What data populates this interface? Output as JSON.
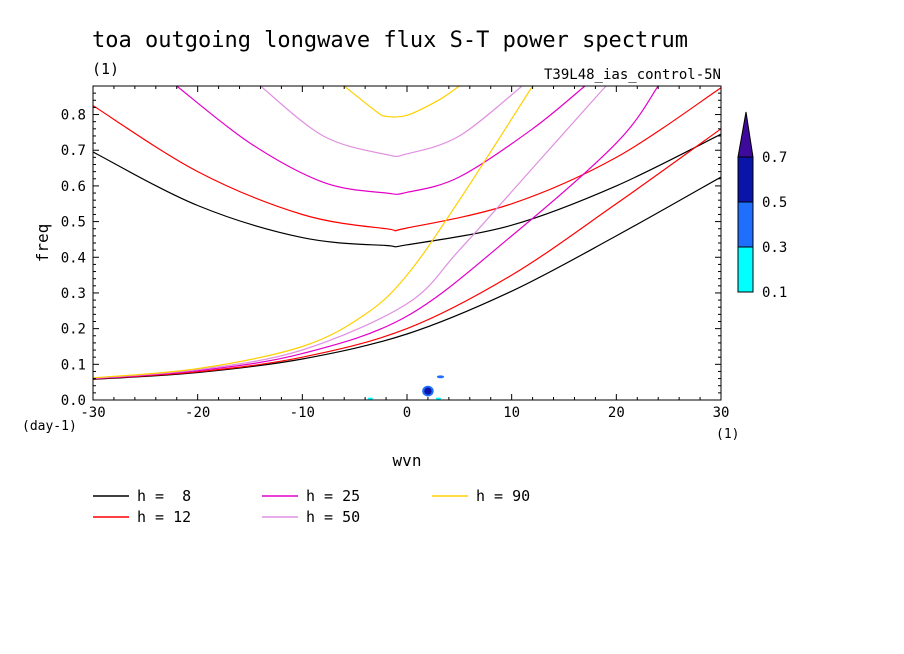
{
  "chart_data": {
    "type": "line",
    "title": "toa outgoing longwave flux S-T power spectrum",
    "subtitle_left": "(1)",
    "subtitle_right": "T39L48_ias_control-5N",
    "xlabel": "wvn",
    "ylabel": "freq",
    "x_unit": "(1)",
    "y_unit": "(day-1)",
    "xlim": [
      -30,
      30
    ],
    "ylim": [
      0,
      0.88
    ],
    "xticks": [
      -30,
      -20,
      -10,
      0,
      10,
      20,
      30
    ],
    "xtick_labels": [
      "-30",
      "-20",
      "-10",
      "0",
      "10",
      "20",
      "30"
    ],
    "yticks": [
      0.0,
      0.1,
      0.2,
      0.3,
      0.4,
      0.5,
      0.6,
      0.7,
      0.8
    ],
    "ytick_labels": [
      "0.0",
      "0.1",
      "0.2",
      "0.3",
      "0.4",
      "0.5",
      "0.6",
      "0.7",
      "0.8"
    ],
    "colorbar": {
      "levels": [
        "0.1",
        "0.3",
        "0.5",
        "0.7"
      ],
      "colors": [
        "#00ffff",
        "#1f6fff",
        "#0a14a8",
        "#3d0a9c"
      ]
    },
    "legend": [
      {
        "label": "h =  8",
        "color": "#000000"
      },
      {
        "label": "h = 12",
        "color": "#ff0000"
      },
      {
        "label": "h = 25",
        "color": "#e400c8"
      },
      {
        "label": "h = 50",
        "color": "#e090e0"
      },
      {
        "label": "h = 90",
        "color": "#ffd000"
      }
    ],
    "series": [
      {
        "name": "h =  8",
        "color": "#000000",
        "kind": "ig",
        "points": [
          [
            -30,
            0.695
          ],
          [
            -20,
            0.545
          ],
          [
            -10,
            0.455
          ],
          [
            -2,
            0.433
          ],
          [
            0,
            0.435
          ],
          [
            10,
            0.49
          ],
          [
            20,
            0.6
          ],
          [
            30,
            0.745
          ]
        ]
      },
      {
        "name": "h = 12",
        "color": "#ff0000",
        "kind": "ig",
        "points": [
          [
            -30,
            0.825
          ],
          [
            -20,
            0.64
          ],
          [
            -10,
            0.52
          ],
          [
            -2,
            0.48
          ],
          [
            0,
            0.482
          ],
          [
            10,
            0.55
          ],
          [
            20,
            0.68
          ],
          [
            30,
            0.875
          ]
        ]
      },
      {
        "name": "h = 25",
        "color": "#e400c8",
        "kind": "ig",
        "points": [
          [
            -22,
            0.88
          ],
          [
            -15,
            0.72
          ],
          [
            -8,
            0.61
          ],
          [
            -2,
            0.58
          ],
          [
            0,
            0.582
          ],
          [
            5,
            0.625
          ],
          [
            12,
            0.76
          ],
          [
            17,
            0.88
          ]
        ]
      },
      {
        "name": "h = 50",
        "color": "#e090e0",
        "kind": "ig",
        "points": [
          [
            -14,
            0.88
          ],
          [
            -8,
            0.74
          ],
          [
            -2,
            0.688
          ],
          [
            0,
            0.69
          ],
          [
            5,
            0.74
          ],
          [
            11,
            0.88
          ]
        ]
      },
      {
        "name": "h = 90",
        "color": "#ffd000",
        "kind": "ig",
        "points": [
          [
            -6,
            0.88
          ],
          [
            -3,
            0.81
          ],
          [
            -2,
            0.795
          ],
          [
            0,
            0.798
          ],
          [
            3,
            0.84
          ],
          [
            5,
            0.88
          ]
        ]
      },
      {
        "name": "h =  8",
        "color": "#000000",
        "kind": "kelvin",
        "points": [
          [
            -30,
            0.058
          ],
          [
            -20,
            0.077
          ],
          [
            -10,
            0.115
          ],
          [
            0,
            0.185
          ],
          [
            10,
            0.305
          ],
          [
            20,
            0.46
          ],
          [
            30,
            0.625
          ]
        ]
      },
      {
        "name": "h = 12",
        "color": "#ff0000",
        "kind": "kelvin",
        "points": [
          [
            -30,
            0.059
          ],
          [
            -20,
            0.079
          ],
          [
            -10,
            0.12
          ],
          [
            0,
            0.2
          ],
          [
            10,
            0.35
          ],
          [
            20,
            0.55
          ],
          [
            30,
            0.76
          ]
        ]
      },
      {
        "name": "h = 25",
        "color": "#e400c8",
        "kind": "kelvin",
        "points": [
          [
            -30,
            0.06
          ],
          [
            -20,
            0.082
          ],
          [
            -10,
            0.13
          ],
          [
            0,
            0.235
          ],
          [
            10,
            0.46
          ],
          [
            20,
            0.72
          ],
          [
            24,
            0.88
          ]
        ]
      },
      {
        "name": "h = 50",
        "color": "#e090e0",
        "kind": "kelvin",
        "points": [
          [
            -30,
            0.061
          ],
          [
            -20,
            0.085
          ],
          [
            -10,
            0.14
          ],
          [
            0,
            0.27
          ],
          [
            5,
            0.42
          ],
          [
            12,
            0.65
          ],
          [
            19,
            0.88
          ]
        ]
      },
      {
        "name": "h = 90",
        "color": "#ffd000",
        "kind": "kelvin",
        "points": [
          [
            -30,
            0.062
          ],
          [
            -20,
            0.088
          ],
          [
            -10,
            0.15
          ],
          [
            -4,
            0.24
          ],
          [
            0,
            0.35
          ],
          [
            5,
            0.56
          ],
          [
            12,
            0.88
          ]
        ]
      }
    ],
    "shaded_features": [
      {
        "x": 2.0,
        "y": 0.025,
        "rx": 0.55,
        "ry": 0.015,
        "color": "#1f6fff"
      },
      {
        "x": 2.0,
        "y": 0.025,
        "rx": 0.35,
        "ry": 0.01,
        "color": "#0a14a8"
      },
      {
        "x": 3.2,
        "y": 0.065,
        "rx": 0.35,
        "ry": 0.004,
        "color": "#1f6fff"
      },
      {
        "x": -3.5,
        "y": 0.004,
        "rx": 0.25,
        "ry": 0.003,
        "color": "#00ffff"
      },
      {
        "x": 3.0,
        "y": 0.004,
        "rx": 0.25,
        "ry": 0.003,
        "color": "#00ffff"
      }
    ]
  }
}
